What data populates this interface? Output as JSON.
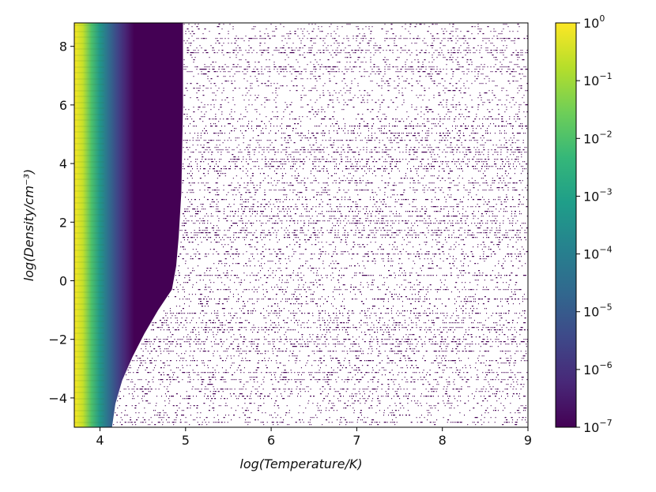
{
  "chart_data": {
    "type": "heatmap",
    "xlabel": "log(Temperature/K)",
    "ylabel": "log(Density/cm⁻³)",
    "xlim": [
      3.7,
      9
    ],
    "ylim": [
      -5,
      8.8
    ],
    "x_ticks": [
      "4",
      "5",
      "6",
      "7",
      "8",
      "9"
    ],
    "y_ticks": [
      "−4",
      "−2",
      "0",
      "2",
      "4",
      "6",
      "8"
    ],
    "colormap": "viridis",
    "color_scale": "log",
    "colorbar": {
      "min": 1e-07,
      "max": 1,
      "ticks": [
        {
          "base": "10",
          "exp": "0"
        },
        {
          "base": "10",
          "exp": "−1"
        },
        {
          "base": "10",
          "exp": "−2"
        },
        {
          "base": "10",
          "exp": "−3"
        },
        {
          "base": "10",
          "exp": "−4"
        },
        {
          "base": "10",
          "exp": "−5"
        },
        {
          "base": "10",
          "exp": "−6"
        },
        {
          "base": "10",
          "exp": "−7"
        }
      ]
    },
    "field_profile": [
      {
        "log_T": 3.7,
        "log_value": -0.05
      },
      {
        "log_T": 3.8,
        "log_value": -0.6
      },
      {
        "log_T": 3.9,
        "log_value": -2.0
      },
      {
        "log_T": 4.0,
        "log_value": -3.3
      },
      {
        "log_T": 4.1,
        "log_value": -4.5
      },
      {
        "log_T": 4.2,
        "log_value": -5.5
      },
      {
        "log_T": 4.3,
        "log_value": -6.3
      },
      {
        "log_T": 4.4,
        "log_value": -7.0
      }
    ],
    "valid_boundary": [
      {
        "log_density": 8.8,
        "log_T": 4.97
      },
      {
        "log_density": 6.0,
        "log_T": 4.97
      },
      {
        "log_density": 3.0,
        "log_T": 4.95
      },
      {
        "log_density": 1.5,
        "log_T": 4.92
      },
      {
        "log_density": 0.5,
        "log_T": 4.89
      },
      {
        "log_density": -0.3,
        "log_T": 4.84
      },
      {
        "log_density": -1.0,
        "log_T": 4.68
      },
      {
        "log_density": -1.8,
        "log_T": 4.52
      },
      {
        "log_density": -2.6,
        "log_T": 4.38
      },
      {
        "log_density": -3.4,
        "log_T": 4.26
      },
      {
        "log_density": -4.2,
        "log_T": 4.18
      },
      {
        "log_density": -5.0,
        "log_T": 4.14
      }
    ],
    "noise_value": 1e-07
  }
}
